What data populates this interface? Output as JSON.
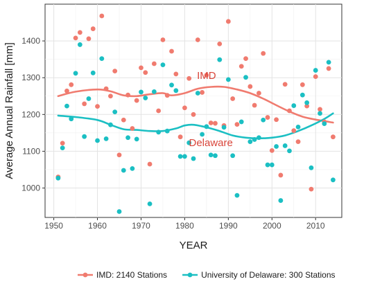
{
  "chart_data": {
    "type": "scatter",
    "xlabel": "YEAR",
    "ylabel": "Average Annual Rainfall [mm]",
    "xlim": [
      1948,
      2016
    ],
    "ylim": [
      920,
      1500
    ],
    "x_ticks": [
      1950,
      1960,
      1970,
      1980,
      1990,
      2000,
      2010
    ],
    "y_ticks": [
      1000,
      1100,
      1200,
      1300,
      1400
    ],
    "grid": true,
    "legend_position": "bottom",
    "series": [
      {
        "name": "IMD: 2140 Stations",
        "color": "#f07b6f",
        "annotation": "IMD",
        "annotation_at": [
          1985,
          1297
        ],
        "points": [
          [
            1951,
            1030
          ],
          [
            1952,
            1122
          ],
          [
            1953,
            1264
          ],
          [
            1954,
            1281
          ],
          [
            1955,
            1408
          ],
          [
            1956,
            1423
          ],
          [
            1957,
            1229
          ],
          [
            1958,
            1406
          ],
          [
            1959,
            1433
          ],
          [
            1960,
            1222
          ],
          [
            1961,
            1468
          ],
          [
            1962,
            1270
          ],
          [
            1963,
            1250
          ],
          [
            1964,
            1318
          ],
          [
            1965,
            1090
          ],
          [
            1966,
            1185
          ],
          [
            1967,
            1253
          ],
          [
            1968,
            1162
          ],
          [
            1969,
            1238
          ],
          [
            1970,
            1327
          ],
          [
            1971,
            1314
          ],
          [
            1972,
            1065
          ],
          [
            1973,
            1338
          ],
          [
            1974,
            1210
          ],
          [
            1975,
            1403
          ],
          [
            1976,
            1252
          ],
          [
            1977,
            1372
          ],
          [
            1978,
            1310
          ],
          [
            1979,
            1139
          ],
          [
            1980,
            1218
          ],
          [
            1981,
            1298
          ],
          [
            1982,
            1200
          ],
          [
            1983,
            1403
          ],
          [
            1984,
            1260
          ],
          [
            1985,
            1307
          ],
          [
            1986,
            1177
          ],
          [
            1987,
            1176
          ],
          [
            1988,
            1392
          ],
          [
            1989,
            1170
          ],
          [
            1990,
            1453
          ],
          [
            1991,
            1243
          ],
          [
            1992,
            1173
          ],
          [
            1993,
            1331
          ],
          [
            1994,
            1352
          ],
          [
            1995,
            1276
          ],
          [
            1996,
            1225
          ],
          [
            1997,
            1258
          ],
          [
            1998,
            1366
          ],
          [
            1999,
            1192
          ],
          [
            2000,
            1102
          ],
          [
            2001,
            1186
          ],
          [
            2002,
            1035
          ],
          [
            2003,
            1282
          ],
          [
            2004,
            1210
          ],
          [
            2005,
            1156
          ],
          [
            2006,
            1126
          ],
          [
            2007,
            1281
          ],
          [
            2008,
            1223
          ],
          [
            2009,
            997
          ],
          [
            2010,
            1303
          ],
          [
            2011,
            1214
          ],
          [
            2012,
            1180
          ],
          [
            2013,
            1325
          ],
          [
            2014,
            1139
          ]
        ],
        "trend": [
          [
            1951,
            1250
          ],
          [
            1955,
            1262
          ],
          [
            1960,
            1268
          ],
          [
            1963,
            1263
          ],
          [
            1966,
            1252
          ],
          [
            1969,
            1250
          ],
          [
            1972,
            1255
          ],
          [
            1975,
            1258
          ],
          [
            1977,
            1252
          ],
          [
            1980,
            1258
          ],
          [
            1983,
            1270
          ],
          [
            1986,
            1275
          ],
          [
            1989,
            1275
          ],
          [
            1992,
            1268
          ],
          [
            1995,
            1258
          ],
          [
            1998,
            1243
          ],
          [
            2001,
            1225
          ],
          [
            2004,
            1208
          ],
          [
            2007,
            1194
          ],
          [
            2010,
            1186
          ],
          [
            2014,
            1178
          ]
        ]
      },
      {
        "name": "University of Delaware: 300 Stations",
        "color": "#1bbfc3",
        "annotation": "Delaware",
        "annotation_at": [
          1986,
          1114
        ],
        "points": [
          [
            1951,
            1027
          ],
          [
            1952,
            1109
          ],
          [
            1953,
            1223
          ],
          [
            1954,
            1188
          ],
          [
            1955,
            1312
          ],
          [
            1956,
            1390
          ],
          [
            1957,
            1140
          ],
          [
            1958,
            1243
          ],
          [
            1959,
            1313
          ],
          [
            1960,
            1129
          ],
          [
            1961,
            1352
          ],
          [
            1962,
            1134
          ],
          [
            1963,
            1172
          ],
          [
            1964,
            1207
          ],
          [
            1965,
            936
          ],
          [
            1966,
            1048
          ],
          [
            1967,
            1137
          ],
          [
            1968,
            1053
          ],
          [
            1969,
            1133
          ],
          [
            1970,
            1261
          ],
          [
            1971,
            1245
          ],
          [
            1972,
            957
          ],
          [
            1973,
            1262
          ],
          [
            1974,
            1152
          ],
          [
            1975,
            1335
          ],
          [
            1976,
            1155
          ],
          [
            1977,
            1280
          ],
          [
            1978,
            1265
          ],
          [
            1979,
            1086
          ],
          [
            1980,
            1086
          ],
          [
            1981,
            1123
          ],
          [
            1982,
            1080
          ],
          [
            1983,
            1258
          ],
          [
            1984,
            1146
          ],
          [
            1985,
            1167
          ],
          [
            1986,
            1090
          ],
          [
            1987,
            1088
          ],
          [
            1988,
            1349
          ],
          [
            1989,
            1165
          ],
          [
            1990,
            1295
          ],
          [
            1991,
            1088
          ],
          [
            1992,
            980
          ],
          [
            1993,
            1180
          ],
          [
            1994,
            1301
          ],
          [
            1995,
            1126
          ],
          [
            1996,
            1132
          ],
          [
            1997,
            1137
          ],
          [
            1998,
            1185
          ],
          [
            1999,
            1063
          ],
          [
            2000,
            1063
          ],
          [
            2001,
            1113
          ],
          [
            2002,
            966
          ],
          [
            2003,
            1115
          ],
          [
            2004,
            1101
          ],
          [
            2005,
            1224
          ],
          [
            2006,
            1166
          ],
          [
            2007,
            1253
          ],
          [
            2008,
            1232
          ],
          [
            2009,
            1055
          ],
          [
            2010,
            1320
          ],
          [
            2011,
            1203
          ],
          [
            2012,
            1175
          ],
          [
            2013,
            1342
          ],
          [
            2014,
            1022
          ]
        ],
        "trend": [
          [
            1951,
            1197
          ],
          [
            1955,
            1193
          ],
          [
            1960,
            1185
          ],
          [
            1963,
            1172
          ],
          [
            1966,
            1160
          ],
          [
            1969,
            1158
          ],
          [
            1972,
            1155
          ],
          [
            1975,
            1155
          ],
          [
            1978,
            1162
          ],
          [
            1980,
            1170
          ],
          [
            1982,
            1172
          ],
          [
            1985,
            1165
          ],
          [
            1988,
            1155
          ],
          [
            1991,
            1143
          ],
          [
            1994,
            1137
          ],
          [
            1997,
            1135
          ],
          [
            2000,
            1137
          ],
          [
            2003,
            1143
          ],
          [
            2006,
            1155
          ],
          [
            2009,
            1170
          ],
          [
            2012,
            1188
          ],
          [
            2014,
            1203
          ]
        ]
      }
    ]
  }
}
